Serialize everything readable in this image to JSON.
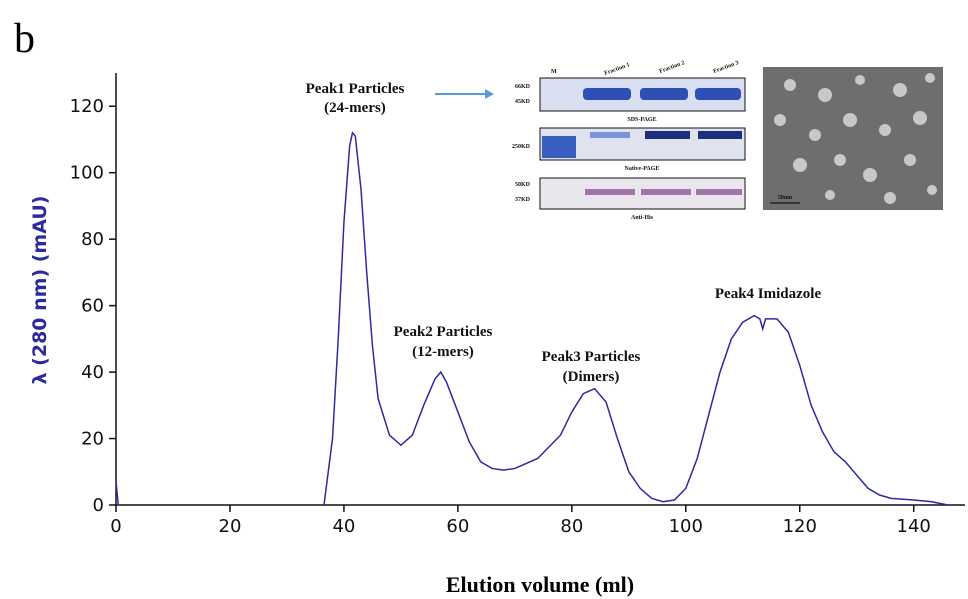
{
  "chart_data": {
    "type": "line",
    "panel_label": "b",
    "x_label": "Elution volume (ml)",
    "y_label": "λ (280 nm) (mAU)",
    "xlim": [
      0,
      149
    ],
    "ylim": [
      0,
      130
    ],
    "xticks": [
      0,
      20,
      40,
      60,
      80,
      100,
      120,
      140
    ],
    "yticks": [
      0,
      20,
      40,
      60,
      80,
      100,
      120
    ],
    "x": [
      0,
      0.4,
      20,
      36.5,
      38,
      39,
      40,
      41,
      41.5,
      42,
      43,
      44,
      45,
      46,
      48,
      50,
      52,
      54,
      56,
      57,
      58,
      60,
      62,
      64,
      66,
      68,
      70,
      74,
      78,
      80,
      82,
      84,
      86,
      88,
      90,
      92,
      94,
      96,
      98,
      100,
      102,
      104,
      106,
      108,
      110,
      112,
      113,
      113.5,
      114,
      116,
      118,
      120,
      122,
      124,
      126,
      128,
      130,
      132,
      134,
      136,
      140,
      143,
      146
    ],
    "series": [
      {
        "color": "#2b2b9e",
        "values": [
          7,
          0,
          null,
          0,
          20,
          50,
          85,
          108,
          112,
          111,
          95,
          70,
          48,
          32,
          21,
          18,
          21,
          30,
          38,
          40,
          37,
          28,
          19,
          13,
          11,
          10.5,
          11,
          14,
          21,
          28,
          33.5,
          35,
          31,
          20,
          10,
          5,
          2,
          1,
          1.5,
          5,
          14,
          27,
          40,
          50,
          55,
          57,
          56,
          53,
          56,
          56,
          52,
          42,
          30,
          22,
          16,
          13,
          9,
          5,
          3,
          2,
          1.5,
          1,
          0
        ]
      }
    ],
    "annotations": [
      "Peak1 Particles",
      "(24-mers)",
      "Peak2 Particles",
      "(12-mers)",
      "Peak3 Particles",
      "(Dimers)",
      "Peak4 Imidazole"
    ],
    "inset": {
      "lanes": [
        "M",
        "Fraction 1",
        "Fraction 2",
        "Fraction 3"
      ],
      "markers": [
        "66KD",
        "45KD",
        "250KD",
        "50KD",
        "37KD"
      ],
      "gels": [
        "SDS-PAGE",
        "Native-PAGE",
        "Anti-His"
      ],
      "scale_bar": "50nm"
    }
  }
}
